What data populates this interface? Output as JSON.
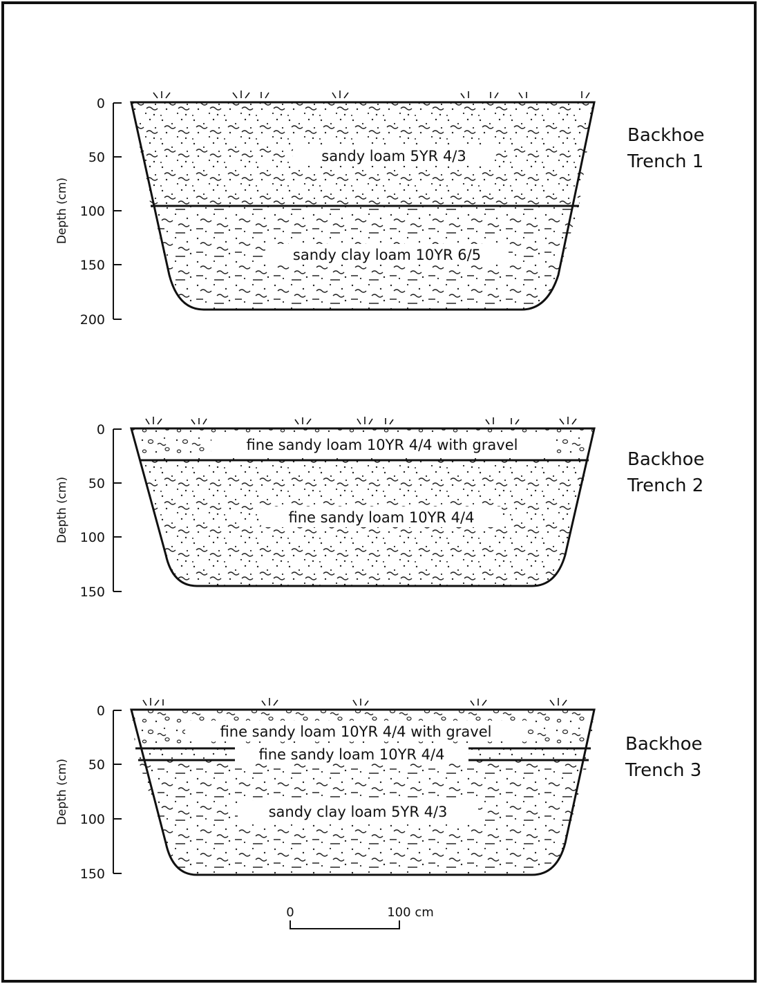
{
  "axis_title": "Depth (cm)",
  "trenches": [
    {
      "title_line1": "Backhoe",
      "title_line2": "Trench 1",
      "ticks": [
        "0",
        "50",
        "100",
        "150",
        "200"
      ],
      "layers": [
        {
          "label": "sandy loam 5YR 4/3"
        },
        {
          "label": "sandy clay loam 10YR 6/5"
        }
      ]
    },
    {
      "title_line1": "Backhoe",
      "title_line2": "Trench 2",
      "ticks": [
        "0",
        "50",
        "100",
        "150"
      ],
      "layers": [
        {
          "label": "fine sandy loam 10YR 4/4 with gravel"
        },
        {
          "label": "fine sandy loam 10YR 4/4"
        }
      ]
    },
    {
      "title_line1": "Backhoe",
      "title_line2": "Trench 3",
      "ticks": [
        "0",
        "50",
        "100",
        "150"
      ],
      "layers": [
        {
          "label": "fine sandy loam 10YR 4/4 with gravel"
        },
        {
          "label": "fine sandy loam 10YR 4/4"
        },
        {
          "label": "sandy clay loam 5YR 4/3"
        }
      ]
    }
  ],
  "scale": {
    "start_label": "0",
    "end_label": "100 cm"
  }
}
